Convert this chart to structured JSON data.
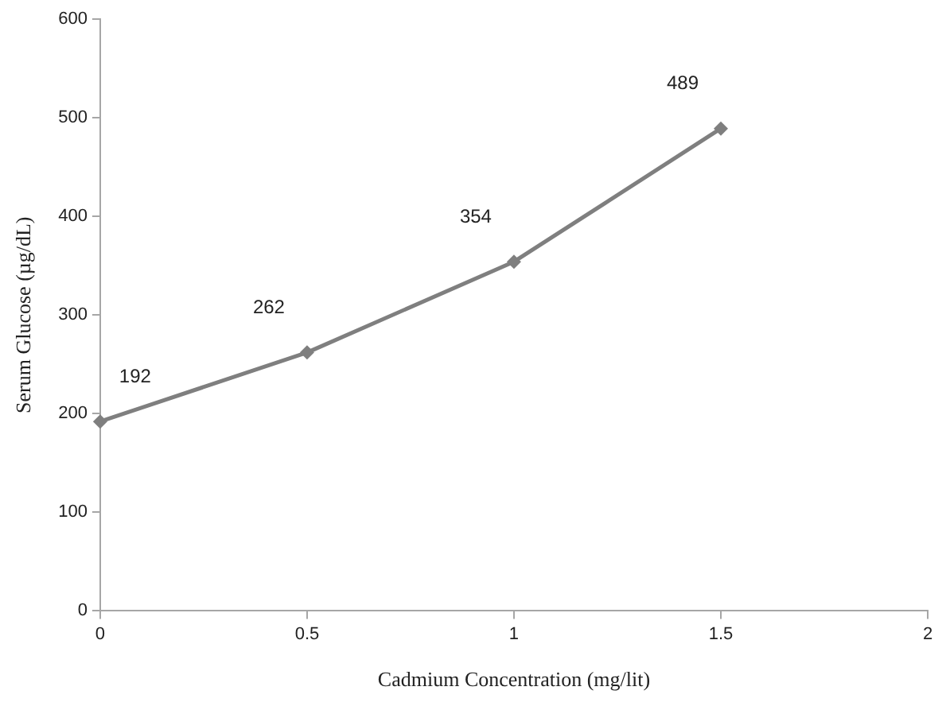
{
  "chart_data": {
    "type": "line",
    "xlabel": "Cadmium Concentration (mg/lit)",
    "ylabel": "Serum Glucose (µg/dL)",
    "x": [
      0,
      0.5,
      1,
      1.5
    ],
    "series": [
      {
        "color": "#7f7f7f",
        "values": [
          192,
          262,
          354,
          489
        ]
      }
    ],
    "xlim": [
      0,
      2
    ],
    "xticks": [
      0,
      0.5,
      1,
      1.5,
      2
    ],
    "ylim": [
      0,
      600
    ],
    "yticks": [
      0,
      100,
      200,
      300,
      400,
      500,
      600
    ],
    "grid": false,
    "legend": false,
    "marker": "diamond",
    "line_style": "solid",
    "data_labels": true
  }
}
